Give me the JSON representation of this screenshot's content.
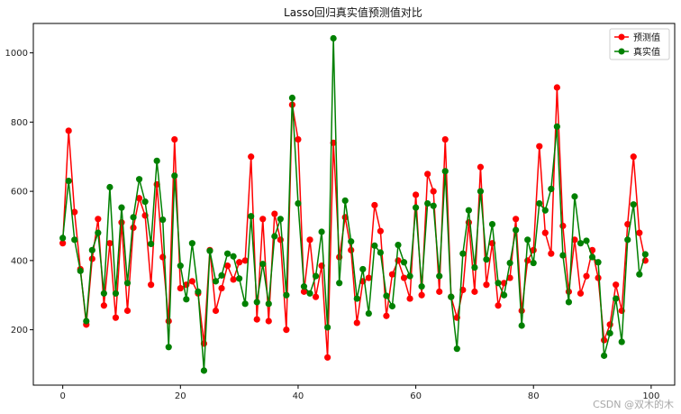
{
  "chart_data": {
    "type": "line",
    "title": "Lasso回归真实值预测值对比",
    "xlabel": "",
    "ylabel": "",
    "xlim": [
      -5,
      104
    ],
    "ylim": [
      40,
      1085
    ],
    "x_ticks": [
      0,
      20,
      40,
      60,
      80,
      100
    ],
    "y_ticks": [
      200,
      400,
      600,
      800,
      1000
    ],
    "grid": false,
    "legend_position": "top-right",
    "series": [
      {
        "name": "预测值",
        "color": "#ff0000",
        "marker": "circle",
        "values": [
          450,
          775,
          540,
          375,
          215,
          405,
          520,
          270,
          450,
          235,
          510,
          255,
          495,
          580,
          530,
          330,
          620,
          410,
          225,
          750,
          320,
          330,
          340,
          305,
          160,
          430,
          255,
          320,
          385,
          345,
          395,
          400,
          700,
          230,
          520,
          225,
          535,
          460,
          200,
          850,
          750,
          310,
          460,
          295,
          385,
          120,
          740,
          410,
          525,
          430,
          220,
          340,
          350,
          560,
          485,
          240,
          360,
          400,
          350,
          290,
          590,
          300,
          650,
          600,
          310,
          750,
          295,
          235,
          315,
          510,
          310,
          670,
          330,
          450,
          270,
          335,
          350,
          520,
          255,
          400,
          430,
          730,
          480,
          420,
          900,
          500,
          310,
          460,
          305,
          355,
          430,
          350,
          170,
          215,
          330,
          255,
          505,
          700,
          480,
          400
        ]
      },
      {
        "name": "真实值",
        "color": "#008000",
        "marker": "circle",
        "values": [
          465,
          630,
          460,
          370,
          225,
          430,
          480,
          305,
          612,
          305,
          553,
          335,
          525,
          635,
          570,
          448,
          688,
          518,
          150,
          645,
          385,
          288,
          450,
          310,
          82,
          428,
          340,
          357,
          420,
          412,
          348,
          275,
          528,
          280,
          390,
          275,
          470,
          520,
          300,
          870,
          565,
          325,
          305,
          355,
          483,
          207,
          1042,
          335,
          573,
          455,
          290,
          375,
          247,
          443,
          423,
          298,
          268,
          445,
          395,
          355,
          553,
          325,
          565,
          558,
          355,
          658,
          295,
          145,
          420,
          545,
          380,
          600,
          403,
          505,
          335,
          300,
          393,
          488,
          212,
          460,
          393,
          565,
          545,
          607,
          787,
          415,
          280,
          585,
          450,
          457,
          410,
          395,
          125,
          190,
          290,
          165,
          460,
          562,
          360,
          418
        ]
      }
    ]
  },
  "watermark": "CSDN @双木的木"
}
